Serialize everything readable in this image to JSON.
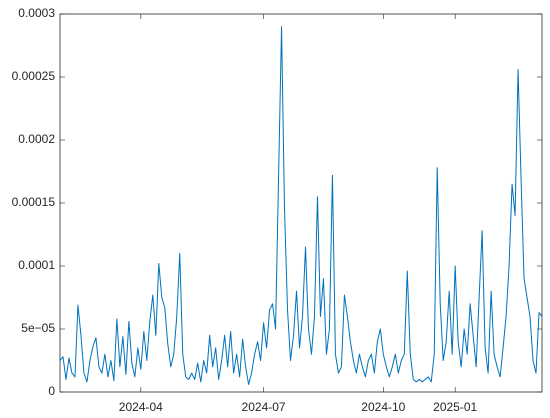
{
  "chart_data": {
    "type": "line",
    "x": [
      0,
      1,
      2,
      3,
      4,
      5,
      6,
      7,
      8,
      9,
      10,
      11,
      12,
      13,
      14,
      15,
      16,
      17,
      18,
      19,
      20,
      21,
      22,
      23,
      24,
      25,
      26,
      27,
      28,
      29,
      30,
      31,
      32,
      33,
      34,
      35,
      36,
      37,
      38,
      39,
      40,
      41,
      42,
      43,
      44,
      45,
      46,
      47,
      48,
      49,
      50,
      51,
      52,
      53,
      54,
      55,
      56,
      57,
      58,
      59,
      60,
      61,
      62,
      63,
      64,
      65,
      66,
      67,
      68,
      69,
      70,
      71,
      72,
      73,
      74,
      75,
      76,
      77,
      78,
      79,
      80,
      81,
      82,
      83,
      84,
      85,
      86,
      87,
      88,
      89,
      90,
      91,
      92,
      93,
      94,
      95,
      96,
      97,
      98,
      99,
      100,
      101,
      102,
      103,
      104,
      105,
      106,
      107,
      108,
      109,
      110,
      111,
      112,
      113,
      114,
      115,
      116,
      117,
      118,
      119,
      120,
      121,
      122,
      123,
      124,
      125,
      126,
      127,
      128,
      129,
      130,
      131,
      132,
      133,
      134,
      135,
      136,
      137,
      138,
      139,
      140,
      141,
      142,
      143,
      144,
      145,
      146,
      147,
      148,
      149,
      150,
      151,
      152,
      153,
      154,
      155,
      156,
      157,
      158,
      159,
      160,
      161
    ],
    "series": [
      {
        "color": "#0072bd",
        "values": [
          2.5e-05,
          2.8e-05,
          1e-05,
          2.7e-05,
          1.5e-05,
          1.2e-05,
          6.9e-05,
          4.5e-05,
          1.5e-05,
          8e-06,
          2.5e-05,
          3.6e-05,
          4.3e-05,
          2e-05,
          1.5e-05,
          3e-05,
          1.2e-05,
          2.5e-05,
          9e-06,
          5.8e-05,
          2e-05,
          4.4e-05,
          1.4e-05,
          5.6e-05,
          2.3e-05,
          1.2e-05,
          3.5e-05,
          1.8e-05,
          4.8e-05,
          2.5e-05,
          5.6e-05,
          7.7e-05,
          4.5e-05,
          0.000102,
          7.5e-05,
          6.7e-05,
          3.8e-05,
          2e-05,
          3e-05,
          6e-05,
          0.00011,
          3e-05,
          1.2e-05,
          1e-05,
          1.5e-05,
          1e-05,
          2.3e-05,
          8e-06,
          2.5e-05,
          1.5e-05,
          4.5e-05,
          2e-05,
          3.5e-05,
          1e-05,
          2.5e-05,
          4.5e-05,
          2e-05,
          4.8e-05,
          1.5e-05,
          3e-05,
          1.2e-05,
          4.2e-05,
          2e-05,
          6e-06,
          1.5e-05,
          3e-05,
          4e-05,
          2.5e-05,
          5.5e-05,
          3.5e-05,
          6.5e-05,
          7e-05,
          5e-05,
          0.00017,
          0.00029,
          0.000145,
          6.5e-05,
          2.5e-05,
          4.5e-05,
          8e-05,
          3.5e-05,
          6e-05,
          0.000115,
          5e-05,
          3e-05,
          6e-05,
          0.000155,
          6e-05,
          9e-05,
          3e-05,
          5e-05,
          0.000172,
          3e-05,
          1.5e-05,
          2e-05,
          7.7e-05,
          6e-05,
          4e-05,
          2.5e-05,
          1.5e-05,
          3e-05,
          2e-05,
          1.2e-05,
          2.5e-05,
          3e-05,
          1.5e-05,
          4e-05,
          5e-05,
          3e-05,
          2e-05,
          1.2e-05,
          2e-05,
          3e-05,
          1.5e-05,
          2.5e-05,
          3e-05,
          9.6e-05,
          3e-05,
          1e-05,
          8e-06,
          1e-05,
          8e-06,
          1e-05,
          1.2e-05,
          8e-06,
          3e-05,
          0.000178,
          7e-05,
          2.5e-05,
          4e-05,
          8e-05,
          3e-05,
          0.0001,
          4e-05,
          2e-05,
          5e-05,
          3e-05,
          7e-05,
          4.5e-05,
          2e-05,
          7.5e-05,
          0.000128,
          3.5e-05,
          1.5e-05,
          8e-05,
          3e-05,
          2e-05,
          1.2e-05,
          3.5e-05,
          6e-05,
          0.0001,
          0.000165,
          0.00014,
          0.000256,
          0.00017,
          9e-05,
          7.5e-05,
          6e-05,
          2.5e-05,
          1.5e-05,
          6.3e-05,
          6e-05
        ]
      }
    ],
    "xlim": [
      0,
      161
    ],
    "xticks": [
      {
        "value": 27,
        "label": "2024-04"
      },
      {
        "value": 68,
        "label": "2024-07"
      },
      {
        "value": 108,
        "label": "2024-10"
      },
      {
        "value": 132,
        "label": "2025-01"
      }
    ],
    "ylim": [
      0,
      0.0003
    ],
    "yticks": [
      0,
      {
        "value": 5e-05,
        "label": "5e−05"
      },
      0.0001,
      0.00015,
      0.0002,
      0.00025,
      0.0003
    ]
  }
}
